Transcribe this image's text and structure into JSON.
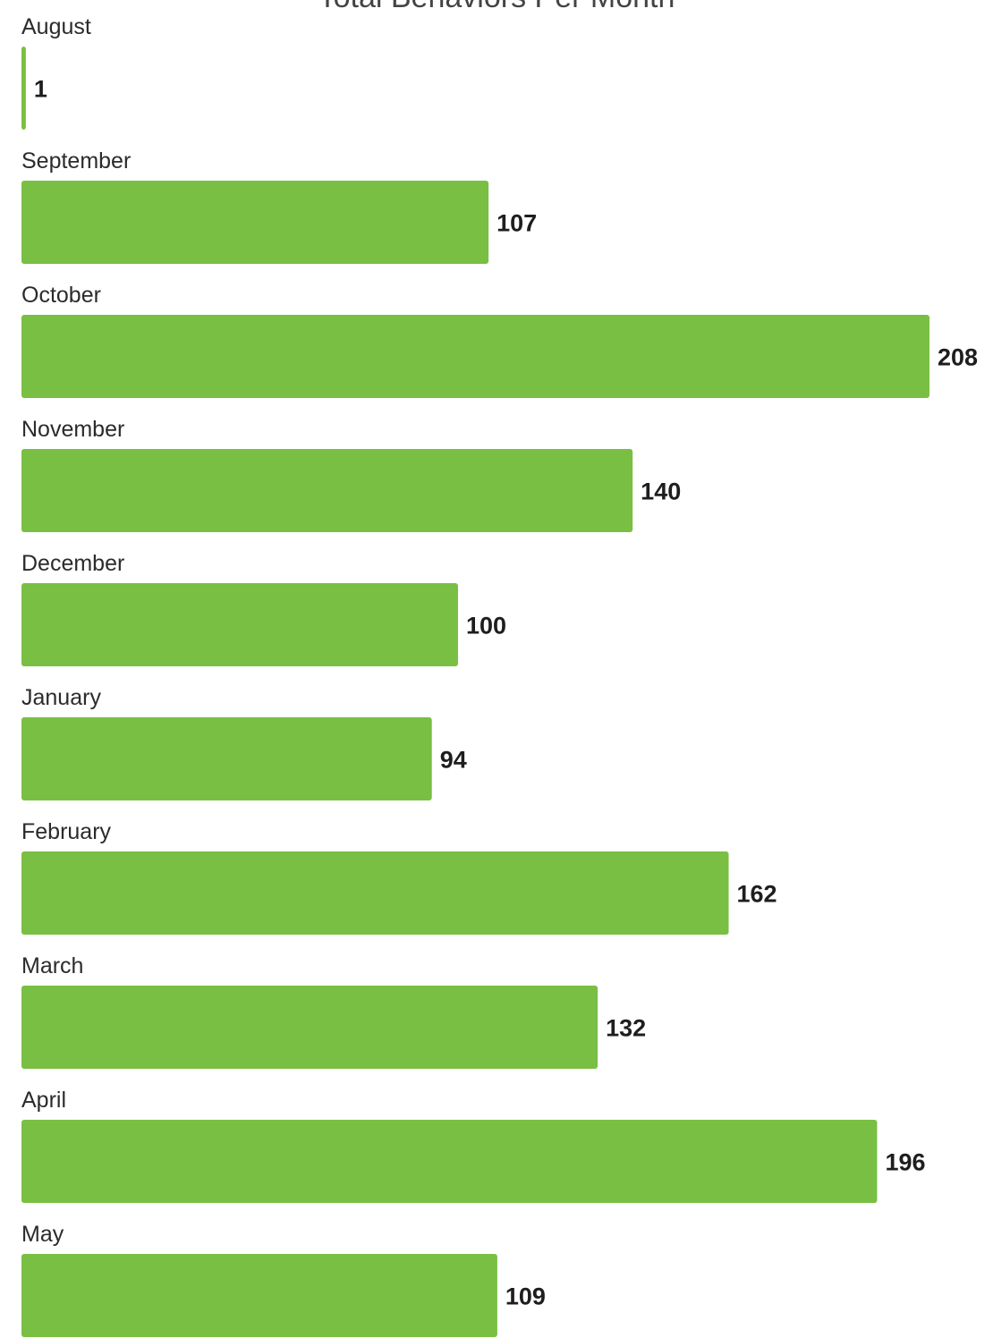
{
  "chart_data": {
    "type": "bar",
    "orientation": "horizontal",
    "title": "Total Behaviors Per Month",
    "categories": [
      "August",
      "September",
      "October",
      "November",
      "December",
      "January",
      "February",
      "March",
      "April",
      "May"
    ],
    "values": [
      1,
      107,
      208,
      140,
      100,
      94,
      162,
      132,
      196,
      109
    ],
    "xlabel": "",
    "ylabel": "",
    "xlim": [
      0,
      208
    ],
    "grid": false,
    "legend": "none",
    "data_labels": true,
    "bar_color": "#79bf43"
  }
}
